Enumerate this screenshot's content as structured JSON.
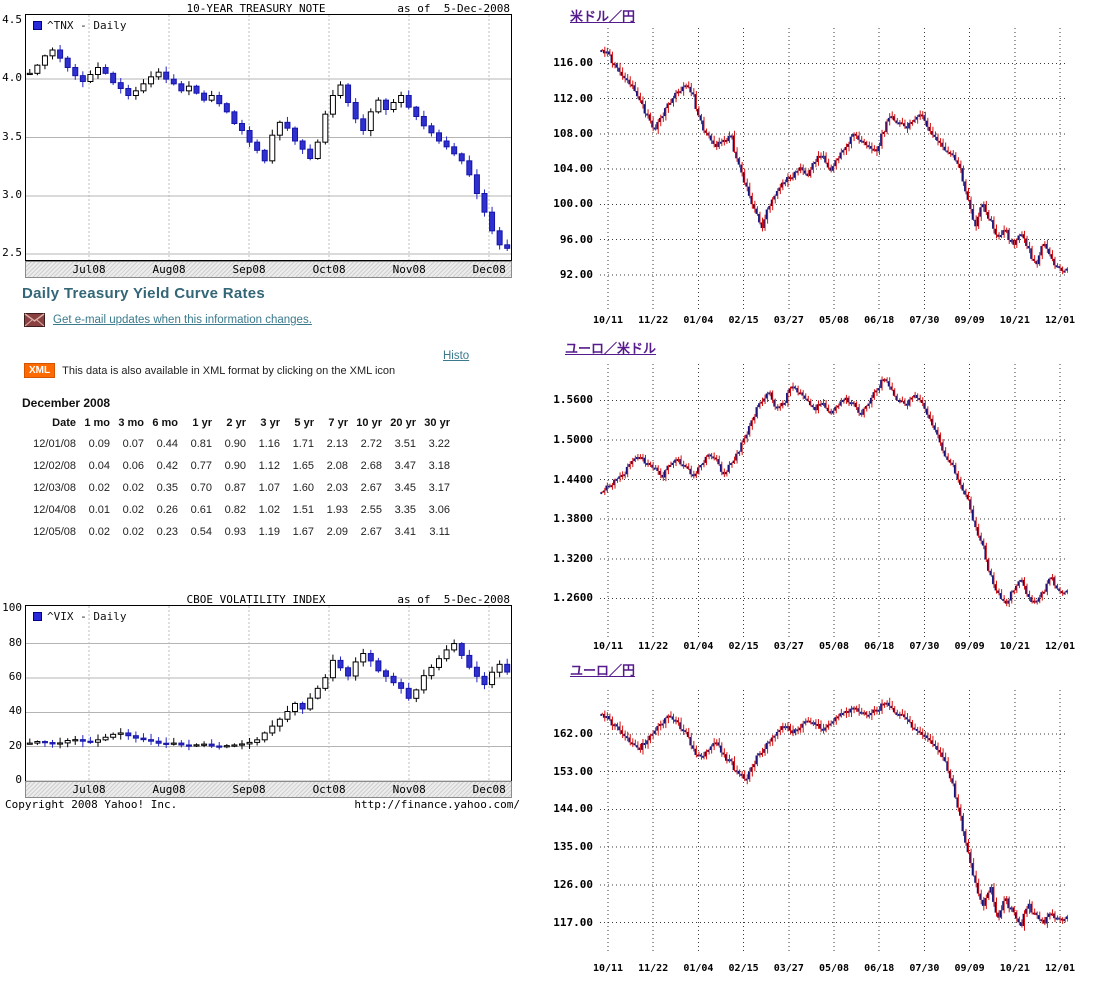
{
  "colors": {
    "heading_teal": "#336677",
    "link_teal": "#3a7a8c",
    "link_purple": "#551a8b",
    "xml_orange": "#ff6a00",
    "candle_blue": "#3030d0",
    "fx_navy": "#12127a",
    "fx_red": "#d31111",
    "grid_gray": "#b0b0b0"
  },
  "treasury": {
    "heading": "Daily Treasury Yield Curve Rates",
    "email_link": "Get e-mail updates when this information changes.",
    "histo_link": "Histo",
    "xml_badge": "XML",
    "xml_note": "This data is also available in XML format by clicking on the XML icon",
    "month_label": "December 2008",
    "table": {
      "headers": [
        "Date",
        "1 mo",
        "3 mo",
        "6 mo",
        "1 yr",
        "2 yr",
        "3 yr",
        "5 yr",
        "7 yr",
        "10 yr",
        "20 yr",
        "30 yr"
      ],
      "rows": [
        [
          "12/01/08",
          "0.09",
          "0.07",
          "0.44",
          "0.81",
          "0.90",
          "1.16",
          "1.71",
          "2.13",
          "2.72",
          "3.51",
          "3.22"
        ],
        [
          "12/02/08",
          "0.04",
          "0.06",
          "0.42",
          "0.77",
          "0.90",
          "1.12",
          "1.65",
          "2.08",
          "2.68",
          "3.47",
          "3.18"
        ],
        [
          "12/03/08",
          "0.02",
          "0.02",
          "0.35",
          "0.70",
          "0.87",
          "1.07",
          "1.60",
          "2.03",
          "2.67",
          "3.45",
          "3.17"
        ],
        [
          "12/04/08",
          "0.01",
          "0.02",
          "0.26",
          "0.61",
          "0.82",
          "1.02",
          "1.51",
          "1.93",
          "2.55",
          "3.35",
          "3.06"
        ],
        [
          "12/05/08",
          "0.02",
          "0.02",
          "0.23",
          "0.54",
          "0.93",
          "1.19",
          "1.67",
          "2.09",
          "2.67",
          "3.41",
          "3.11"
        ]
      ]
    }
  },
  "footer": {
    "copyright": "Copyright 2008 Yahoo! Inc.",
    "url": "http://finance.yahoo.com/"
  },
  "chart_data": [
    {
      "id": "tnx",
      "type": "candlestick",
      "style": "yahoo",
      "title": "10-YEAR TREASURY NOTE",
      "as_of": "as of  5-Dec-2008",
      "legend": "^TNX - Daily",
      "x_ticks": [
        "Jul08",
        "Aug08",
        "Sep08",
        "Oct08",
        "Nov08",
        "Dec08"
      ],
      "y_tick_labels": [
        "4.5",
        "4.0",
        "3.5",
        "3.0",
        "2.5"
      ],
      "y_tick_values": [
        4.5,
        4.0,
        3.5,
        3.0,
        2.5
      ],
      "ylim": [
        2.45,
        4.55
      ],
      "closes": [
        4.05,
        4.12,
        4.2,
        4.25,
        4.18,
        4.1,
        4.03,
        3.98,
        4.04,
        4.1,
        4.05,
        3.97,
        3.92,
        3.86,
        3.9,
        3.96,
        4.02,
        4.06,
        4.0,
        3.96,
        3.9,
        3.94,
        3.88,
        3.82,
        3.86,
        3.79,
        3.72,
        3.62,
        3.56,
        3.46,
        3.39,
        3.3,
        3.52,
        3.63,
        3.58,
        3.47,
        3.4,
        3.32,
        3.46,
        3.7,
        3.86,
        3.95,
        3.8,
        3.66,
        3.56,
        3.72,
        3.82,
        3.74,
        3.8,
        3.86,
        3.76,
        3.68,
        3.6,
        3.54,
        3.47,
        3.42,
        3.36,
        3.3,
        3.18,
        3.02,
        2.86,
        2.7,
        2.58,
        2.55
      ]
    },
    {
      "id": "vix",
      "type": "candlestick",
      "style": "yahoo",
      "title": "CBOE VOLATILITY INDEX",
      "as_of": "as of  5-Dec-2008",
      "legend": "^VIX - Daily",
      "x_ticks": [
        "Jul08",
        "Aug08",
        "Sep08",
        "Oct08",
        "Nov08",
        "Dec08"
      ],
      "y_tick_labels": [
        "100",
        "80",
        "60",
        "40",
        "20",
        "0"
      ],
      "y_tick_values": [
        100,
        80,
        60,
        40,
        20,
        0
      ],
      "ylim": [
        0,
        102
      ],
      "closes": [
        22.1,
        23.0,
        22.4,
        21.6,
        22.2,
        23.6,
        24.1,
        23.2,
        22.6,
        24.0,
        25.5,
        27.2,
        28.0,
        26.4,
        25.0,
        24.1,
        23.2,
        22.0,
        21.6,
        22.1,
        21.0,
        20.6,
        21.1,
        21.5,
        20.4,
        20.1,
        20.6,
        21.0,
        21.6,
        22.5,
        24.0,
        28.0,
        32.0,
        36.0,
        40.5,
        45.2,
        42.0,
        48.3,
        54.0,
        60.2,
        70.3,
        66.0,
        61.2,
        69.4,
        74.3,
        70.0,
        64.2,
        61.0,
        57.3,
        54.0,
        48.2,
        53.1,
        61.4,
        66.2,
        71.3,
        76.4,
        80.1,
        73.2,
        66.3,
        61.0,
        56.2,
        63.4,
        68.0,
        63.5
      ]
    },
    {
      "id": "usdjpy",
      "type": "bar",
      "style": "fx",
      "title": "米ドル／円",
      "x_ticks": [
        "10/11",
        "11/22",
        "01/04",
        "02/15",
        "03/27",
        "05/08",
        "06/18",
        "07/30",
        "09/09",
        "10/21",
        "12/01"
      ],
      "y_tick_labels": [
        "116.00",
        "112.00",
        "108.00",
        "104.00",
        "100.00",
        "96.00",
        "92.00"
      ],
      "y_tick_values": [
        116,
        112,
        108,
        104,
        100,
        96,
        92
      ],
      "ylim": [
        88,
        120
      ],
      "closes": [
        117.5,
        117.0,
        115.5,
        114.3,
        113.5,
        111.8,
        110.2,
        108.5,
        110.0,
        111.5,
        112.8,
        113.5,
        112.5,
        109.5,
        107.8,
        106.5,
        107.3,
        107.8,
        104.5,
        102.0,
        99.5,
        97.3,
        99.8,
        101.5,
        102.5,
        103.0,
        104.2,
        103.2,
        104.8,
        105.5,
        103.8,
        105.2,
        106.5,
        108.0,
        107.2,
        106.6,
        106.0,
        108.2,
        110.0,
        109.3,
        108.6,
        109.6,
        110.1,
        108.3,
        107.2,
        106.1,
        105.6,
        104.1,
        100.5,
        97.5,
        100.0,
        98.2,
        96.3,
        97.1,
        95.4,
        96.6,
        95.0,
        93.2,
        95.5,
        93.8,
        92.8,
        92.7
      ]
    },
    {
      "id": "eurusd",
      "type": "bar",
      "style": "fx",
      "title": "ユーロ／米ドル",
      "x_ticks": [
        "10/11",
        "11/22",
        "01/04",
        "02/15",
        "03/27",
        "05/08",
        "06/18",
        "07/30",
        "09/09",
        "10/21",
        "12/01"
      ],
      "y_tick_labels": [
        "1.5600",
        "1.5000",
        "1.4400",
        "1.3800",
        "1.3200",
        "1.2600"
      ],
      "y_tick_values": [
        1.56,
        1.5,
        1.44,
        1.38,
        1.32,
        1.26
      ],
      "ylim": [
        1.2,
        1.615
      ],
      "closes": [
        1.421,
        1.43,
        1.441,
        1.448,
        1.468,
        1.474,
        1.465,
        1.458,
        1.443,
        1.462,
        1.471,
        1.46,
        1.445,
        1.462,
        1.478,
        1.471,
        1.448,
        1.465,
        1.482,
        1.508,
        1.535,
        1.558,
        1.572,
        1.548,
        1.556,
        1.581,
        1.572,
        1.559,
        1.545,
        1.556,
        1.54,
        1.552,
        1.564,
        1.556,
        1.538,
        1.555,
        1.575,
        1.592,
        1.576,
        1.56,
        1.552,
        1.568,
        1.556,
        1.532,
        1.508,
        1.475,
        1.462,
        1.432,
        1.41,
        1.368,
        1.34,
        1.295,
        1.268,
        1.252,
        1.272,
        1.288,
        1.262,
        1.255,
        1.27,
        1.292,
        1.271,
        1.272
      ]
    },
    {
      "id": "eurjpy",
      "type": "bar",
      "style": "fx",
      "title": "ユーロ／円",
      "x_ticks": [
        "10/11",
        "11/22",
        "01/04",
        "02/15",
        "03/27",
        "05/08",
        "06/18",
        "07/30",
        "09/09",
        "10/21",
        "12/01"
      ],
      "y_tick_labels": [
        "162.00",
        "153.00",
        "144.00",
        "135.00",
        "126.00",
        "117.00"
      ],
      "y_tick_values": [
        162,
        153,
        144,
        135,
        126,
        117
      ],
      "ylim": [
        110,
        172.5
      ],
      "closes": [
        166.8,
        165.5,
        163.8,
        161.5,
        159.8,
        158.2,
        160.5,
        162.8,
        164.5,
        166.2,
        164.8,
        162.5,
        158.5,
        156.8,
        158.2,
        160.0,
        157.2,
        155.5,
        152.5,
        151.2,
        154.8,
        157.5,
        160.2,
        162.5,
        163.8,
        162.2,
        163.5,
        165.2,
        164.2,
        162.8,
        164.5,
        166.2,
        167.5,
        168.3,
        167.2,
        166.5,
        167.8,
        169.0,
        168.2,
        166.8,
        165.5,
        163.2,
        161.8,
        160.5,
        158.2,
        155.5,
        150.2,
        142.5,
        133.8,
        126.5,
        121.0,
        125.5,
        118.2,
        122.8,
        119.5,
        116.2,
        121.5,
        118.8,
        116.8,
        119.2,
        118.0,
        118.5
      ]
    }
  ]
}
